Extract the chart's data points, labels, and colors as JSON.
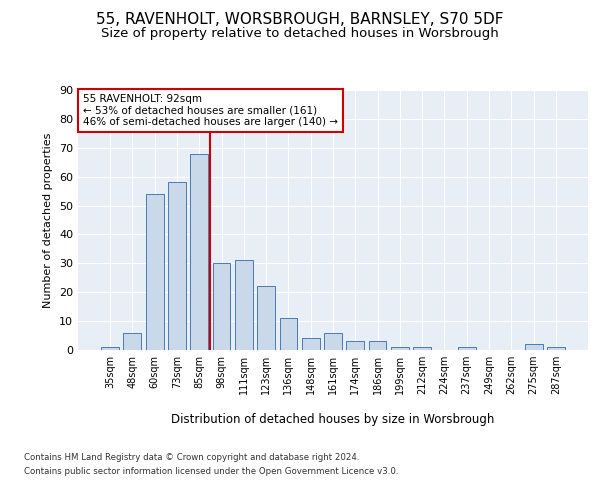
{
  "title": "55, RAVENHOLT, WORSBROUGH, BARNSLEY, S70 5DF",
  "subtitle": "Size of property relative to detached houses in Worsbrough",
  "xlabel": "Distribution of detached houses by size in Worsbrough",
  "ylabel": "Number of detached properties",
  "categories": [
    "35sqm",
    "48sqm",
    "60sqm",
    "73sqm",
    "85sqm",
    "98sqm",
    "111sqm",
    "123sqm",
    "136sqm",
    "148sqm",
    "161sqm",
    "174sqm",
    "186sqm",
    "199sqm",
    "212sqm",
    "224sqm",
    "237sqm",
    "249sqm",
    "262sqm",
    "275sqm",
    "287sqm"
  ],
  "values": [
    1,
    6,
    54,
    58,
    68,
    30,
    31,
    22,
    11,
    4,
    6,
    3,
    3,
    1,
    1,
    0,
    1,
    0,
    0,
    2,
    1
  ],
  "bar_color": "#c9d9ea",
  "bar_edge_color": "#4a7ab5",
  "vline_x": 4.5,
  "vline_color": "#cc0000",
  "annotation_title": "55 RAVENHOLT: 92sqm",
  "annotation_line1": "← 53% of detached houses are smaller (161)",
  "annotation_line2": "46% of semi-detached houses are larger (140) →",
  "annotation_box_color": "#ffffff",
  "annotation_box_edge": "#cc0000",
  "footer1": "Contains HM Land Registry data © Crown copyright and database right 2024.",
  "footer2": "Contains public sector information licensed under the Open Government Licence v3.0.",
  "ylim": [
    0,
    90
  ],
  "yticks": [
    0,
    10,
    20,
    30,
    40,
    50,
    60,
    70,
    80,
    90
  ],
  "bg_color": "#e8eef5",
  "fig_bg_color": "#ffffff",
  "title_fontsize": 11,
  "subtitle_fontsize": 9.5,
  "bar_width": 0.8
}
